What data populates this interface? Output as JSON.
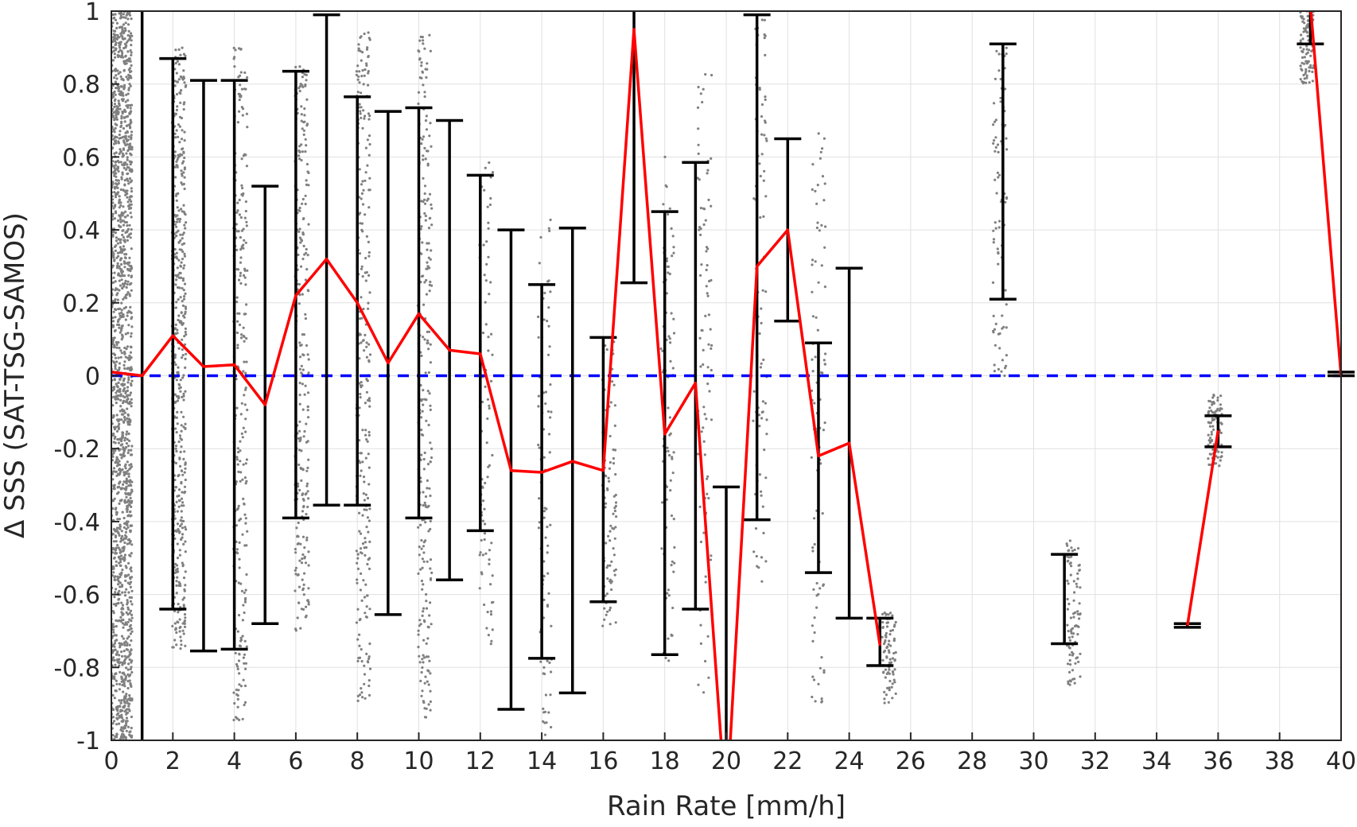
{
  "chart_data": {
    "type": "line",
    "title": "",
    "xlabel": "Rain Rate [mm/h]",
    "ylabel": "Δ SSS (SAT-TSG-SAMOS)",
    "xlim": [
      0,
      40
    ],
    "ylim": [
      -1,
      1
    ],
    "xticks": [
      0,
      2,
      4,
      6,
      8,
      10,
      12,
      14,
      16,
      18,
      20,
      22,
      24,
      26,
      28,
      30,
      32,
      34,
      36,
      38,
      40
    ],
    "xtick_labels": [
      "0",
      "2",
      "4",
      "6",
      "8",
      "10",
      "12",
      "14",
      "16",
      "18",
      "20",
      "22",
      "24",
      "26",
      "28",
      "30",
      "32",
      "34",
      "36",
      "38",
      "40"
    ],
    "yticks": [
      -1,
      -0.8,
      -0.6,
      -0.4,
      -0.2,
      0,
      0.2,
      0.4,
      0.6,
      0.8,
      1
    ],
    "ytick_labels": [
      "-1",
      "-0.8",
      "-0.6",
      "-0.4",
      "-0.2",
      "0",
      "0.2",
      "0.4",
      "0.6",
      "0.8",
      "1"
    ],
    "grid": true,
    "colors": {
      "mean_line": "#ff0000",
      "error_bars": "#000000",
      "reference_line": "#0000ff",
      "scatter": "#808080",
      "grid": "#e0e0e0",
      "axes": "#262626"
    },
    "mean_series": {
      "segments": [
        [
          [
            0,
            0.01
          ],
          [
            1,
            0.0
          ],
          [
            2,
            0.11
          ],
          [
            3,
            0.025
          ],
          [
            4,
            0.03
          ],
          [
            5,
            -0.08
          ],
          [
            6,
            0.22
          ],
          [
            7,
            0.32
          ],
          [
            8,
            0.2
          ],
          [
            9,
            0.035
          ],
          [
            10,
            0.17
          ],
          [
            11,
            0.07
          ],
          [
            12,
            0.06
          ],
          [
            13,
            -0.26
          ],
          [
            14,
            -0.265
          ],
          [
            15,
            -0.235
          ],
          [
            16,
            -0.26
          ],
          [
            17,
            0.95
          ],
          [
            18,
            -0.16
          ],
          [
            19,
            -0.02
          ],
          [
            20,
            -1.2
          ],
          [
            21,
            0.3
          ],
          [
            22,
            0.4
          ],
          [
            23,
            -0.22
          ],
          [
            24,
            -0.185
          ],
          [
            25,
            -0.74
          ]
        ],
        [
          [
            35,
            -0.685
          ],
          [
            36,
            -0.15
          ]
        ],
        [
          [
            39,
            1.02
          ],
          [
            40,
            0.0
          ]
        ]
      ]
    },
    "error_bars": [
      {
        "x": 1,
        "lower": -1.0,
        "upper": 1.0
      },
      {
        "x": 2,
        "lower": -0.64,
        "upper": 0.87
      },
      {
        "x": 3,
        "lower": -0.755,
        "upper": 0.81
      },
      {
        "x": 4,
        "lower": -0.75,
        "upper": 0.81
      },
      {
        "x": 5,
        "lower": -0.68,
        "upper": 0.52
      },
      {
        "x": 6,
        "lower": -0.39,
        "upper": 0.835
      },
      {
        "x": 7,
        "lower": -0.355,
        "upper": 0.99
      },
      {
        "x": 8,
        "lower": -0.355,
        "upper": 0.765
      },
      {
        "x": 9,
        "lower": -0.655,
        "upper": 0.725
      },
      {
        "x": 10,
        "lower": -0.39,
        "upper": 0.735
      },
      {
        "x": 11,
        "lower": -0.56,
        "upper": 0.7
      },
      {
        "x": 12,
        "lower": -0.425,
        "upper": 0.55
      },
      {
        "x": 13,
        "lower": -0.915,
        "upper": 0.4
      },
      {
        "x": 14,
        "lower": -0.775,
        "upper": 0.25
      },
      {
        "x": 15,
        "lower": -0.87,
        "upper": 0.405
      },
      {
        "x": 16,
        "lower": -0.62,
        "upper": 0.105
      },
      {
        "x": 17,
        "lower": 0.255,
        "upper": 1.0
      },
      {
        "x": 18,
        "lower": -0.765,
        "upper": 0.45
      },
      {
        "x": 19,
        "lower": -0.64,
        "upper": 0.585
      },
      {
        "x": 20,
        "lower": -1.0,
        "upper": -0.305
      },
      {
        "x": 21,
        "lower": -0.395,
        "upper": 0.99
      },
      {
        "x": 22,
        "lower": 0.15,
        "upper": 0.65
      },
      {
        "x": 23,
        "lower": -0.54,
        "upper": 0.09
      },
      {
        "x": 24,
        "lower": -0.665,
        "upper": 0.295
      },
      {
        "x": 25,
        "lower": -0.795,
        "upper": -0.665
      },
      {
        "x": 29,
        "lower": 0.21,
        "upper": 0.91
      },
      {
        "x": 31,
        "lower": -0.735,
        "upper": -0.49
      },
      {
        "x": 35,
        "lower": -0.69,
        "upper": -0.68
      },
      {
        "x": 36,
        "lower": -0.195,
        "upper": -0.11
      },
      {
        "x": 39,
        "lower": 0.91,
        "upper": 1.0
      },
      {
        "x": 40,
        "lower": 0.0,
        "upper": 0.01
      }
    ],
    "reference_line": {
      "y": 0,
      "style": "dashed"
    },
    "scatter_columns": [
      {
        "x": 0.3,
        "lower": -1.0,
        "upper": 1.0,
        "density": "very dense"
      },
      {
        "x": 2.2,
        "lower": -0.75,
        "upper": 0.9,
        "density": "dense"
      },
      {
        "x": 4.2,
        "lower": -0.95,
        "upper": 0.9,
        "density": "medium"
      },
      {
        "x": 6.2,
        "lower": -0.7,
        "upper": 0.85,
        "density": "medium"
      },
      {
        "x": 8.2,
        "lower": -0.9,
        "upper": 0.95,
        "density": "medium"
      },
      {
        "x": 10.2,
        "lower": -0.95,
        "upper": 0.95,
        "density": "medium"
      },
      {
        "x": 12.2,
        "lower": -0.75,
        "upper": 0.6,
        "density": "sparse"
      },
      {
        "x": 14.1,
        "lower": -1.0,
        "upper": 0.45,
        "density": "sparse"
      },
      {
        "x": 16.2,
        "lower": -0.7,
        "upper": 0.1,
        "density": "sparse"
      },
      {
        "x": 18.1,
        "lower": -0.8,
        "upper": 0.6,
        "density": "sparse"
      },
      {
        "x": 19.3,
        "lower": -0.9,
        "upper": 0.85,
        "density": "sparse"
      },
      {
        "x": 21.1,
        "lower": -0.6,
        "upper": 1.0,
        "density": "sparse"
      },
      {
        "x": 23.0,
        "lower": -0.9,
        "upper": 0.7,
        "density": "sparse"
      },
      {
        "x": 25.3,
        "lower": -0.9,
        "upper": -0.65,
        "density": "sparse"
      },
      {
        "x": 28.9,
        "lower": 0.0,
        "upper": 0.9,
        "density": "sparse"
      },
      {
        "x": 31.3,
        "lower": -0.85,
        "upper": -0.45,
        "density": "sparse"
      },
      {
        "x": 35.9,
        "lower": -0.25,
        "upper": -0.05,
        "density": "sparse"
      },
      {
        "x": 38.9,
        "lower": 0.8,
        "upper": 1.0,
        "density": "sparse"
      }
    ]
  }
}
